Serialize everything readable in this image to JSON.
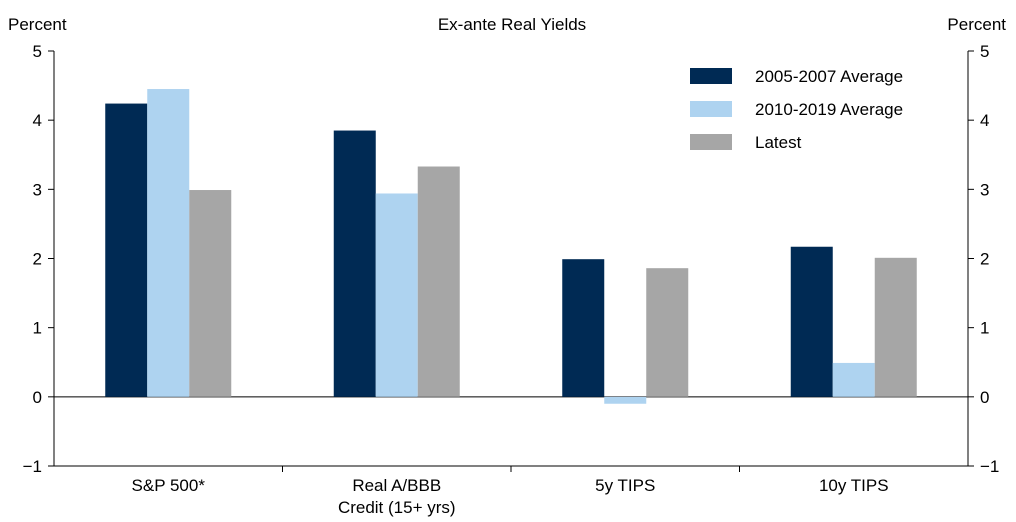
{
  "chart_data": {
    "type": "bar",
    "title": "Ex-ante Real Yields",
    "left_axis_label": "Percent",
    "right_axis_label": "Percent",
    "xlabel": "",
    "ylabel": "Percent",
    "ylim": [
      -1,
      5
    ],
    "yticks": [
      -1,
      0,
      1,
      2,
      3,
      4,
      5
    ],
    "ytick_labels": [
      "−1",
      "0",
      "1",
      "2",
      "3",
      "4",
      "5"
    ],
    "categories": [
      [
        "S&P 500*"
      ],
      [
        "Real A/BBB",
        "Credit (15+ yrs)"
      ],
      [
        "5y TIPS"
      ],
      [
        "10y TIPS"
      ]
    ],
    "series": [
      {
        "name": "2005-2007 Average",
        "color": "#002a54",
        "values": [
          4.24,
          3.85,
          1.99,
          2.17
        ]
      },
      {
        "name": "2010-2019 Average",
        "color": "#aed3f0",
        "values": [
          4.45,
          2.94,
          -0.1,
          0.49
        ]
      },
      {
        "name": "Latest",
        "color": "#a6a6a6",
        "values": [
          2.99,
          3.33,
          1.86,
          2.01
        ]
      }
    ],
    "legend_position": "top-right",
    "grid": false
  }
}
